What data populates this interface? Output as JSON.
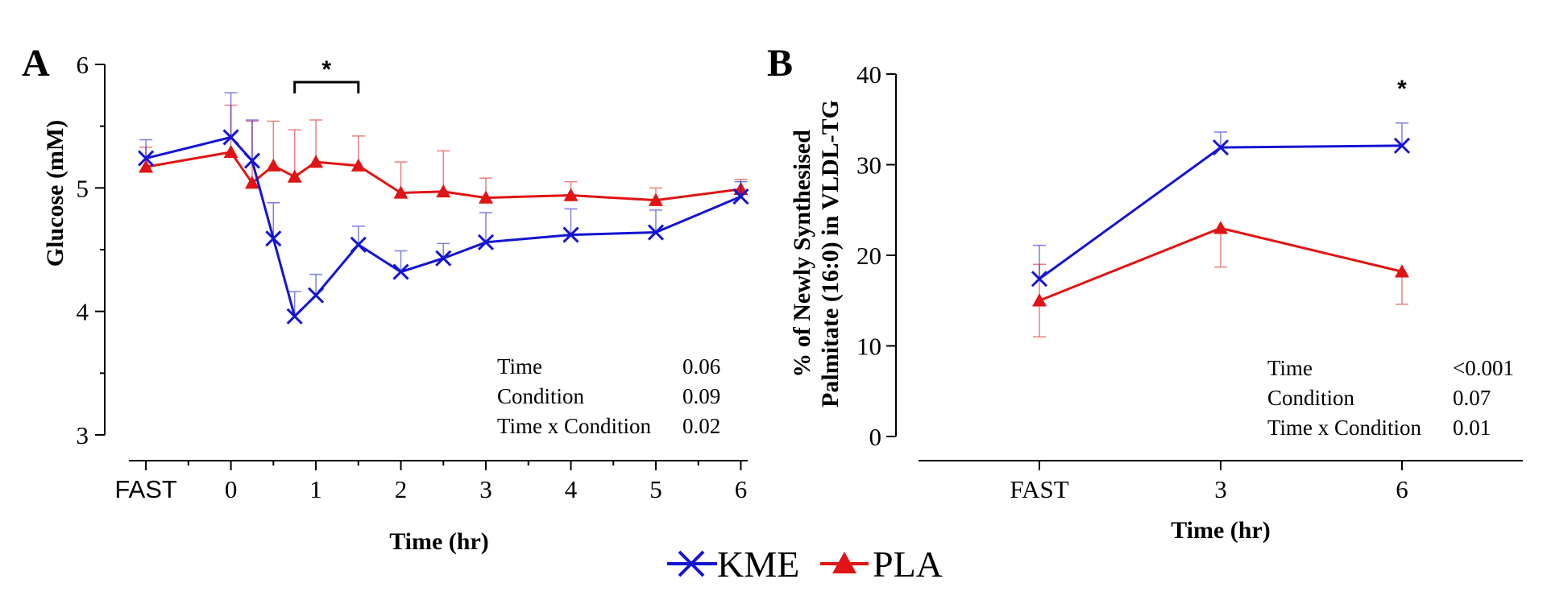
{
  "colors": {
    "KME": "#1414d2",
    "PLA": "#e01414",
    "axis": "#000000"
  },
  "legend": {
    "items": [
      {
        "label": "KME",
        "color": "#1414d2",
        "marker": "x-icon"
      },
      {
        "label": "PLA",
        "color": "#e01414",
        "marker": "triangle-icon"
      }
    ]
  },
  "chart_data": [
    {
      "panel": "A",
      "type": "line",
      "xlabel": "Time (hr)",
      "ylabel": "Glucose (mM)",
      "ylim": [
        3,
        6
      ],
      "yticks": [
        3,
        4,
        5,
        6
      ],
      "xlim": [
        -1.2,
        6.1
      ],
      "xticks": [
        {
          "value": -1,
          "label": "FAST"
        },
        {
          "value": 0,
          "label": "0"
        },
        {
          "value": 1,
          "label": "1"
        },
        {
          "value": 2,
          "label": "2"
        },
        {
          "value": 3,
          "label": "3"
        },
        {
          "value": 4,
          "label": "4"
        },
        {
          "value": 5,
          "label": "5"
        },
        {
          "value": 6,
          "label": "6"
        }
      ],
      "minor_xticks": [
        -0.5,
        0.5,
        1.5,
        2.5,
        3.5,
        4.5,
        5.5
      ],
      "minor_yticks": [
        3.5,
        4.5,
        5.5
      ],
      "series": [
        {
          "name": "KME",
          "x": [
            -1,
            0,
            0.25,
            0.5,
            0.75,
            1,
            1.5,
            2,
            2.5,
            3,
            4,
            5,
            6
          ],
          "y": [
            5.24,
            5.41,
            5.22,
            4.59,
            3.96,
            4.13,
            4.54,
            4.32,
            4.43,
            4.56,
            4.62,
            4.64,
            4.93
          ],
          "err": [
            0.15,
            0.36,
            0.33,
            0.29,
            0.2,
            0.17,
            0.15,
            0.17,
            0.12,
            0.24,
            0.21,
            0.18,
            0.12
          ]
        },
        {
          "name": "PLA",
          "x": [
            -1,
            0,
            0.25,
            0.5,
            0.75,
            1,
            1.5,
            2,
            2.5,
            3,
            4,
            5,
            6
          ],
          "y": [
            5.17,
            5.29,
            5.04,
            5.18,
            5.09,
            5.21,
            5.18,
            4.96,
            4.97,
            4.92,
            4.94,
            4.9,
            4.99
          ],
          "err": [
            0.16,
            0.38,
            0.5,
            0.36,
            0.38,
            0.34,
            0.24,
            0.25,
            0.33,
            0.16,
            0.11,
            0.1,
            0.08
          ]
        }
      ],
      "significance": {
        "x_start": 0.75,
        "x_end": 1.5,
        "label": "*"
      },
      "stats": [
        {
          "term": "Time",
          "p": "0.06"
        },
        {
          "term": "Condition",
          "p": "0.09"
        },
        {
          "term": "Time x Condition",
          "p": "0.02"
        }
      ]
    },
    {
      "panel": "B",
      "type": "line",
      "xlabel": "Time (hr)",
      "ylabel_line1": "% of Newly Synthesised",
      "ylabel_line2": "Palmitate (16:0) in VLDL-TG",
      "ylim": [
        0,
        40
      ],
      "yticks": [
        0,
        10,
        20,
        30,
        40
      ],
      "categories": [
        "FAST",
        "3",
        "6"
      ],
      "series": [
        {
          "name": "KME",
          "y": [
            17.4,
            31.9,
            32.1
          ],
          "err": [
            3.7,
            1.7,
            2.5
          ]
        },
        {
          "name": "PLA",
          "y": [
            15.0,
            23.0,
            18.2
          ],
          "err": [
            4.0,
            4.3,
            3.6
          ]
        }
      ],
      "significance": {
        "category_index": 2,
        "label": "*"
      },
      "stats": [
        {
          "term": "Time",
          "p": "<0.001"
        },
        {
          "term": "Condition",
          "p": "0.07"
        },
        {
          "term": "Time x Condition",
          "p": "0.01"
        }
      ]
    }
  ]
}
